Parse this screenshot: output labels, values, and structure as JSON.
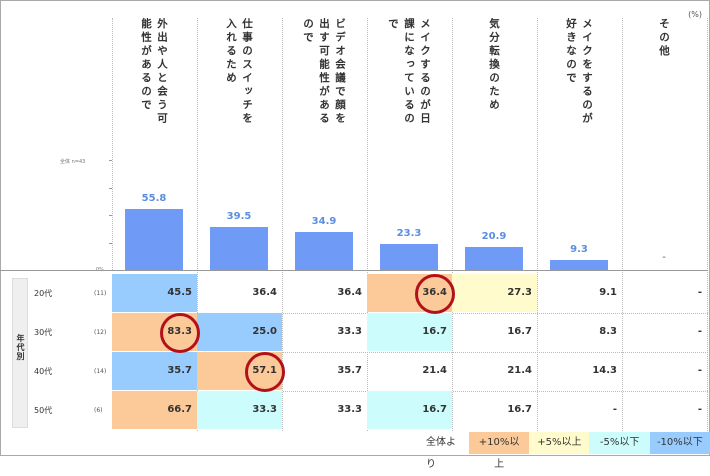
{
  "unit": "(%)",
  "total_label": "全体 n=43",
  "axis_zero": "0%",
  "row_group_label": "年代別",
  "legend": {
    "prefix": "全体より",
    "items": [
      {
        "label": "+10%以上",
        "color": "#fcc999"
      },
      {
        "label": "+5%以上",
        "color": "#fffbcc"
      },
      {
        "label": "-5%以下",
        "color": "#ccfcfc"
      },
      {
        "label": "-10%以下",
        "color": "#99ccfe"
      }
    ]
  },
  "chart_data": {
    "type": "bar",
    "categories": [
      "外出や人と会う可能性があるので",
      "仕事のスイッチを入れるため",
      "ビデオ会議で顔を出す可能性があるので",
      "メイクするのが日課になっているので",
      "気分転換のため",
      "メイクをするのが好きなので",
      "その他"
    ],
    "values": [
      55.8,
      39.5,
      34.9,
      23.3,
      20.9,
      9.3,
      null
    ],
    "value_labels": [
      "55.8",
      "39.5",
      "34.9",
      "23.3",
      "20.9",
      "9.3",
      "-"
    ],
    "ylim": [
      0,
      100
    ]
  },
  "table": {
    "rows": [
      {
        "age": "20代",
        "n": "(11)",
        "cells": [
          "45.5",
          "36.4",
          "36.4",
          "36.4",
          "27.3",
          "9.1",
          "-"
        ],
        "shades": [
          "m10",
          "",
          "",
          "p10",
          "p5",
          "",
          ""
        ]
      },
      {
        "age": "30代",
        "n": "(12)",
        "cells": [
          "83.3",
          "25.0",
          "33.3",
          "16.7",
          "16.7",
          "8.3",
          "-"
        ],
        "shades": [
          "p10",
          "m10",
          "",
          "m5",
          "",
          "",
          ""
        ]
      },
      {
        "age": "40代",
        "n": "(14)",
        "cells": [
          "35.7",
          "57.1",
          "35.7",
          "21.4",
          "21.4",
          "14.3",
          "-"
        ],
        "shades": [
          "m10",
          "p10",
          "",
          "",
          "",
          "",
          ""
        ]
      },
      {
        "age": "50代",
        "n": "(6)",
        "cells": [
          "66.7",
          "33.3",
          "33.3",
          "16.7",
          "16.7",
          "-",
          "-"
        ],
        "shades": [
          "p10",
          "m5",
          "",
          "m5",
          "",
          "",
          ""
        ]
      }
    ],
    "highlights": [
      {
        "row": 0,
        "col": 3
      },
      {
        "row": 1,
        "col": 0
      },
      {
        "row": 2,
        "col": 1
      }
    ]
  }
}
